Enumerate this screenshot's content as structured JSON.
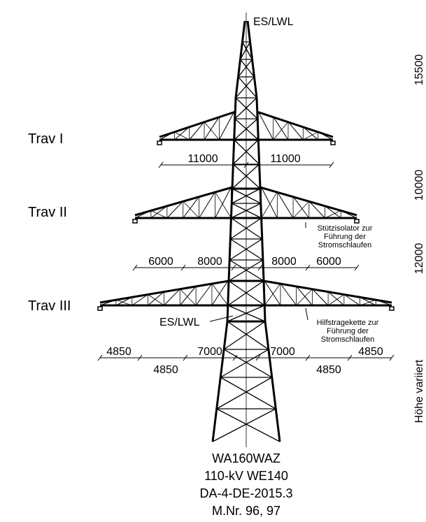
{
  "top_label": "ES/LWL",
  "crossarms": [
    {
      "label": "Trav I",
      "dimensions": [
        "11000",
        "11000"
      ]
    },
    {
      "label": "Trav II",
      "dimensions": [
        "6000",
        "8000",
        "8000",
        "6000"
      ]
    },
    {
      "label": "Trav III",
      "dimensions": [
        "4850",
        "4850",
        "7000",
        "7000",
        "4850",
        "4850"
      ]
    }
  ],
  "annotations": {
    "support_insulator": [
      "Stützisolator zur",
      "Führung der",
      "Stromschlaufen"
    ],
    "earth_wire": "ES/LWL",
    "auxiliary_chain": [
      "Hilfstragekette zur",
      "Führung der",
      "Stromschlaufen"
    ]
  },
  "side_labels": [
    "15500",
    "10000",
    "12000",
    "Höhe variiert"
  ],
  "footer": [
    "WA160WAZ",
    "110-kV WE140",
    "DA-4-DE-2015.3",
    "M.Nr. 96, 97"
  ]
}
